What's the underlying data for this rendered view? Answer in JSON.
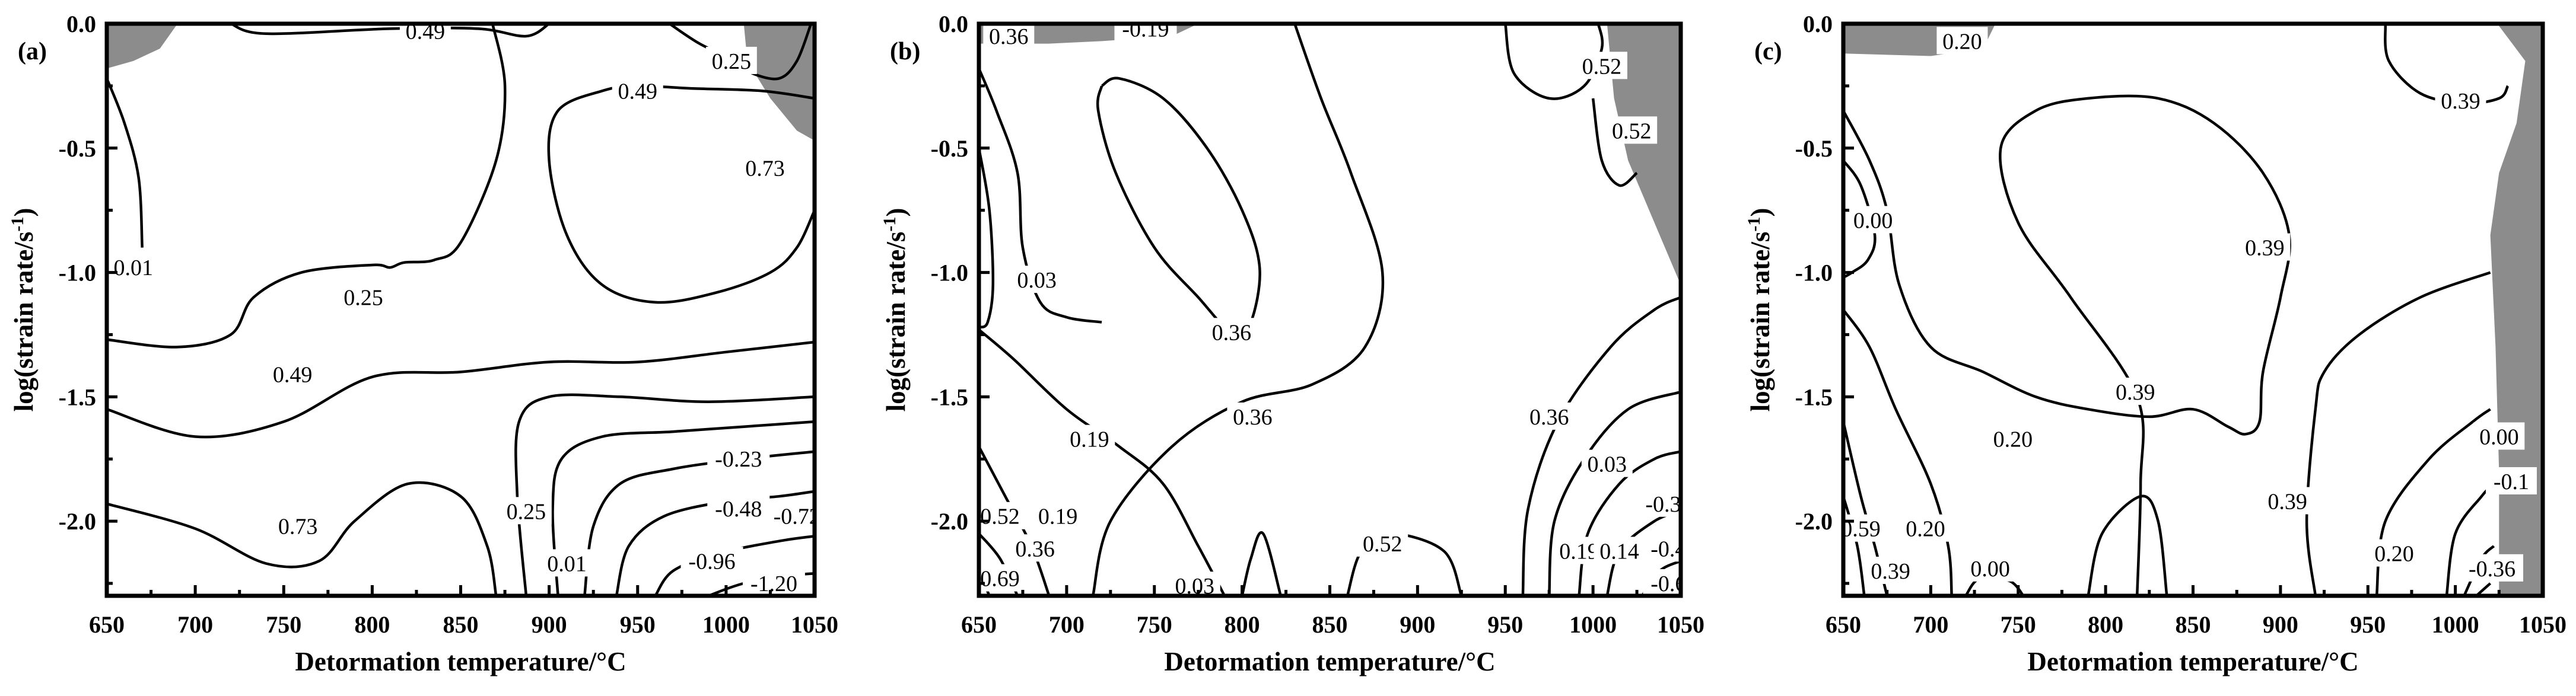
{
  "figure": {
    "panels": [
      "(a)",
      "(b)",
      "(c)"
    ],
    "xlabel": "Detormation temperature/°C",
    "ylabel_main": "log(strain rate/s",
    "ylabel_sup": "-1",
    "ylabel_close": ")"
  },
  "chart_data": [
    {
      "type": "contour",
      "panel": "(a)",
      "xlabel": "Detormation temperature/°C",
      "ylabel": "log(strain rate/s-1)",
      "xlim": [
        650,
        1050
      ],
      "ylim": [
        -2.3,
        0.0
      ],
      "xticks": [
        650,
        700,
        750,
        800,
        850,
        900,
        950,
        1000,
        1050
      ],
      "yticks": [
        0.0,
        -0.5,
        -1.0,
        -1.5,
        -2.0
      ],
      "contour_labels": [
        {
          "text": "0.49",
          "x": 830,
          "y": -0.03
        },
        {
          "text": "0.25",
          "x": 1003,
          "y": -0.15
        },
        {
          "text": "0.49",
          "x": 950,
          "y": -0.27
        },
        {
          "text": "0.73",
          "x": 1022,
          "y": -0.58
        },
        {
          "text": "0.01",
          "x": 665,
          "y": -0.98
        },
        {
          "text": "0.25",
          "x": 795,
          "y": -1.1
        },
        {
          "text": "0.49",
          "x": 755,
          "y": -1.41
        },
        {
          "text": "0.73",
          "x": 758,
          "y": -2.02
        },
        {
          "text": "-0.23",
          "x": 1007,
          "y": -1.75
        },
        {
          "text": "-0.48",
          "x": 1007,
          "y": -1.95
        },
        {
          "text": "-0.72",
          "x": 1040,
          "y": -1.98
        },
        {
          "text": "0.25",
          "x": 887,
          "y": -1.96
        },
        {
          "text": "0.01",
          "x": 910,
          "y": -2.17
        },
        {
          "text": "-0.96",
          "x": 992,
          "y": -2.16
        },
        {
          "text": "-1.20",
          "x": 1027,
          "y": -2.25
        }
      ],
      "unstable_regions": 2
    },
    {
      "type": "contour",
      "panel": "(b)",
      "xlabel": "Detormation temperature/°C",
      "ylabel": "log(strain rate/s-1)",
      "xlim": [
        650,
        1050
      ],
      "ylim": [
        -2.3,
        0.0
      ],
      "xticks": [
        650,
        700,
        750,
        800,
        850,
        900,
        950,
        1000,
        1050
      ],
      "yticks": [
        0.0,
        -0.5,
        -1.0,
        -1.5,
        -2.0
      ],
      "contour_labels": [
        {
          "text": "-0.19",
          "x": 745,
          "y": -0.02
        },
        {
          "text": "0.36",
          "x": 667,
          "y": -0.05
        },
        {
          "text": "0.52",
          "x": 1022,
          "y": -0.43
        },
        {
          "text": "0.52",
          "x": 1005,
          "y": -0.17
        },
        {
          "text": "0.03",
          "x": 683,
          "y": -1.03
        },
        {
          "text": "0.36",
          "x": 794,
          "y": -1.24
        },
        {
          "text": "0.36",
          "x": 806,
          "y": -1.58
        },
        {
          "text": "0.19",
          "x": 713,
          "y": -1.67
        },
        {
          "text": "0.36",
          "x": 975,
          "y": -1.58
        },
        {
          "text": "0.03",
          "x": 1008,
          "y": -1.77
        },
        {
          "text": "-0.3",
          "x": 1040,
          "y": -1.93
        },
        {
          "text": "0.52",
          "x": 662,
          "y": -1.98
        },
        {
          "text": "0.19",
          "x": 695,
          "y": -1.98
        },
        {
          "text": "0.36",
          "x": 682,
          "y": -2.11
        },
        {
          "text": "0.52",
          "x": 880,
          "y": -2.09
        },
        {
          "text": "0.19",
          "x": 992,
          "y": -2.12
        },
        {
          "text": "0.14",
          "x": 1015,
          "y": -2.12
        },
        {
          "text": "-0.4",
          "x": 1043,
          "y": -2.11
        },
        {
          "text": "0.69",
          "x": 662,
          "y": -2.23
        },
        {
          "text": "0.03",
          "x": 773,
          "y": -2.26
        },
        {
          "text": "-0.6",
          "x": 1043,
          "y": -2.25
        }
      ],
      "unstable_regions": 2
    },
    {
      "type": "contour",
      "panel": "(c)",
      "xlabel": "Detormation temperature/°C",
      "ylabel": "log(strain rate/s-1)",
      "xlim": [
        650,
        1050
      ],
      "ylim": [
        -2.3,
        0.0
      ],
      "xticks": [
        650,
        700,
        750,
        800,
        850,
        900,
        950,
        1000,
        1050
      ],
      "yticks": [
        0.0,
        -0.5,
        -1.0,
        -1.5,
        -2.0
      ],
      "contour_labels": [
        {
          "text": "0.20",
          "x": 718,
          "y": -0.07
        },
        {
          "text": "0.39",
          "x": 1003,
          "y": -0.31
        },
        {
          "text": "0.00",
          "x": 667,
          "y": -0.79
        },
        {
          "text": "0.39",
          "x": 891,
          "y": -0.9
        },
        {
          "text": "0.39",
          "x": 817,
          "y": -1.48
        },
        {
          "text": "0.20",
          "x": 747,
          "y": -1.67
        },
        {
          "text": "0.39",
          "x": 904,
          "y": -1.92
        },
        {
          "text": "0.00",
          "x": 1025,
          "y": -1.66
        },
        {
          "text": "-0.1",
          "x": 1032,
          "y": -1.84
        },
        {
          "text": "0.59",
          "x": 660,
          "y": -2.03
        },
        {
          "text": "0.20",
          "x": 697,
          "y": -2.03
        },
        {
          "text": "0.39",
          "x": 677,
          "y": -2.2
        },
        {
          "text": "0.00",
          "x": 734,
          "y": -2.19
        },
        {
          "text": "0.20",
          "x": 965,
          "y": -2.13
        },
        {
          "text": "-0.36",
          "x": 1021,
          "y": -2.19
        }
      ],
      "unstable_regions": 2
    }
  ]
}
